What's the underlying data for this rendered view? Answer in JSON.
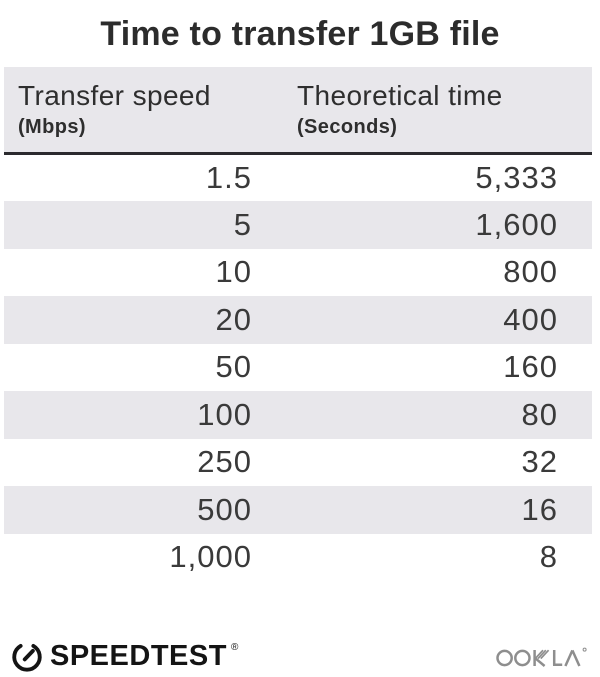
{
  "title": "Time to transfer 1GB file",
  "chart_data": {
    "type": "table",
    "title": "Time to transfer 1GB file",
    "columns": [
      {
        "label": "Transfer speed",
        "unit": "(Mbps)"
      },
      {
        "label": "Theoretical time",
        "unit": "(Seconds)"
      }
    ],
    "rows": [
      [
        "1.5",
        "5,333"
      ],
      [
        "5",
        "1,600"
      ],
      [
        "10",
        "800"
      ],
      [
        "20",
        "400"
      ],
      [
        "50",
        "160"
      ],
      [
        "100",
        "80"
      ],
      [
        "250",
        "32"
      ],
      [
        "500",
        "16"
      ],
      [
        "1,000",
        "8"
      ]
    ],
    "layout_hints": {
      "striped_rows": true,
      "numbers_right_aligned": true
    }
  },
  "footer": {
    "speedtest_label": "SPEEDTEST",
    "registered_mark": "®",
    "ookla_label": "OOKLA"
  },
  "colors": {
    "stripe_gray": "#e8e7eb",
    "header_gray": "#e8e7eb",
    "rule_dark": "#2b2a2e",
    "text_dark": "#3a3a3a",
    "title_dark": "#2c2c2c",
    "speedtest_black": "#141414",
    "ookla_gray": "#8e8e8e"
  }
}
